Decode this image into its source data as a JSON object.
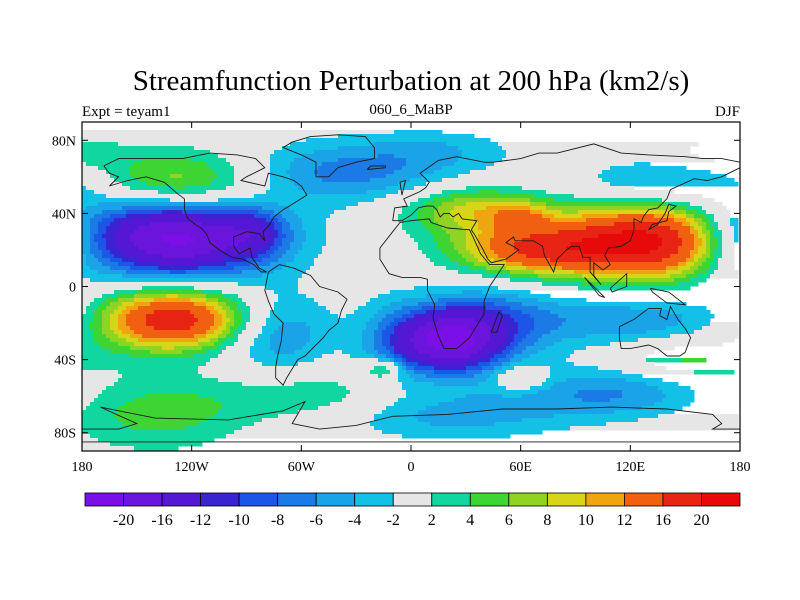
{
  "chart_data": {
    "type": "heatmap",
    "title": "Streamfunction Perturbation at 200 hPa (km2/s)",
    "left_label": "Expt = teyam1",
    "center_label": "060_6_MaBP",
    "right_label": "DJF",
    "x_ticks": [
      "180",
      "120W",
      "60W",
      "0",
      "60E",
      "120E",
      "180"
    ],
    "y_ticks": [
      "80N",
      "40N",
      "0",
      "40S",
      "80S"
    ],
    "x_range": [
      -180,
      180
    ],
    "y_range": [
      -90,
      90
    ],
    "colorbar": {
      "labels": [
        "-20",
        "-16",
        "-12",
        "-10",
        "-8",
        "-6",
        "-4",
        "-2",
        "2",
        "4",
        "6",
        "8",
        "10",
        "12",
        "16",
        "20"
      ],
      "levels": [
        -20,
        -16,
        -12,
        -10,
        -8,
        -6,
        -4,
        -2,
        2,
        4,
        6,
        8,
        10,
        12,
        16,
        20
      ],
      "colors": [
        "#7a0fe8",
        "#6a14dc",
        "#5418d4",
        "#3a23d0",
        "#1d55e6",
        "#1c7ae6",
        "#1ba3e8",
        "#14c1e6",
        "#e6e6e6",
        "#12d6a0",
        "#3ed434",
        "#8fd423",
        "#d8d418",
        "#f0a40f",
        "#f06010",
        "#e82414",
        "#e80a0a"
      ]
    },
    "features": [
      {
        "lon": -130,
        "lat": 28,
        "sx": 38,
        "sy": 16,
        "amp": -22
      },
      {
        "lon": -85,
        "lat": 30,
        "sx": 12,
        "sy": 9,
        "amp": -5
      },
      {
        "lon": -125,
        "lat": 55,
        "sx": 35,
        "sy": 13,
        "amp": 11
      },
      {
        "lon": -40,
        "lat": 62,
        "sx": 45,
        "sy": 12,
        "amp": -7
      },
      {
        "lon": 15,
        "lat": 75,
        "sx": 30,
        "sy": 8,
        "amp": -3
      },
      {
        "lon": 35,
        "lat": 42,
        "sx": 28,
        "sy": 9,
        "amp": 9
      },
      {
        "lon": 60,
        "lat": 38,
        "sx": 10,
        "sy": 5,
        "amp": 5
      },
      {
        "lon": 130,
        "lat": 25,
        "sx": 35,
        "sy": 15,
        "amp": 21
      },
      {
        "lon": 65,
        "lat": 20,
        "sx": 30,
        "sy": 10,
        "amp": 14
      },
      {
        "lon": 140,
        "lat": 55,
        "sx": 35,
        "sy": 10,
        "amp": -6
      },
      {
        "lon": 170,
        "lat": 73,
        "sx": 20,
        "sy": 6,
        "amp": 4
      },
      {
        "lon": -130,
        "lat": -18,
        "sx": 30,
        "sy": 12,
        "amp": 19
      },
      {
        "lon": -140,
        "lat": -70,
        "sx": 35,
        "sy": 14,
        "amp": 5
      },
      {
        "lon": -75,
        "lat": -25,
        "sx": 22,
        "sy": 15,
        "amp": -7
      },
      {
        "lon": -50,
        "lat": -60,
        "sx": 40,
        "sy": 10,
        "amp": 4
      },
      {
        "lon": -10,
        "lat": -30,
        "sx": 15,
        "sy": 18,
        "amp": -4
      },
      {
        "lon": -15,
        "lat": -45,
        "sx": 7,
        "sy": 4,
        "amp": 7
      },
      {
        "lon": 20,
        "lat": -30,
        "sx": 20,
        "sy": 12,
        "amp": -19
      },
      {
        "lon": 45,
        "lat": -20,
        "sx": 25,
        "sy": 15,
        "amp": -7
      },
      {
        "lon": 60,
        "lat": -50,
        "sx": 10,
        "sy": 5,
        "amp": 5
      },
      {
        "lon": 120,
        "lat": -18,
        "sx": 40,
        "sy": 10,
        "amp": -6
      },
      {
        "lon": 150,
        "lat": -40,
        "sx": 25,
        "sy": 8,
        "amp": 5
      },
      {
        "lon": 110,
        "lat": -58,
        "sx": 38,
        "sy": 10,
        "amp": -6
      },
      {
        "lon": 20,
        "lat": -70,
        "sx": 45,
        "sy": 10,
        "amp": -5
      },
      {
        "lon": 175,
        "lat": 20,
        "sx": 15,
        "sy": 25,
        "amp": -3
      }
    ],
    "coastlines": [
      [
        [
          -168,
          66
        ],
        [
          -160,
          70
        ],
        [
          -140,
          70
        ],
        [
          -125,
          70
        ],
        [
          -110,
          73
        ],
        [
          -95,
          72
        ],
        [
          -85,
          70
        ],
        [
          -80,
          65
        ],
        [
          -90,
          60
        ],
        [
          -93,
          58
        ],
        [
          -80,
          55
        ],
        [
          -78,
          62
        ],
        [
          -70,
          60
        ],
        [
          -64,
          58
        ],
        [
          -60,
          55
        ],
        [
          -57,
          50
        ],
        [
          -65,
          45
        ],
        [
          -70,
          42
        ],
        [
          -75,
          38
        ],
        [
          -78,
          33
        ],
        [
          -81,
          30
        ],
        [
          -80,
          25
        ],
        [
          -83,
          29
        ],
        [
          -90,
          30
        ],
        [
          -97,
          27
        ],
        [
          -97,
          22
        ],
        [
          -94,
          18
        ],
        [
          -88,
          21
        ],
        [
          -87,
          16
        ],
        [
          -83,
          10
        ],
        [
          -79,
          8
        ],
        [
          -82,
          8
        ],
        [
          -86,
          12
        ],
        [
          -92,
          15
        ],
        [
          -98,
          16
        ],
        [
          -105,
          20
        ],
        [
          -110,
          24
        ],
        [
          -112,
          29
        ],
        [
          -115,
          32
        ],
        [
          -118,
          34
        ],
        [
          -122,
          37
        ],
        [
          -124,
          42
        ],
        [
          -124,
          48
        ],
        [
          -128,
          51
        ],
        [
          -135,
          57
        ],
        [
          -145,
          60
        ],
        [
          -155,
          58
        ],
        [
          -165,
          55
        ],
        [
          -160,
          60
        ],
        [
          -165,
          62
        ],
        [
          -168,
          66
        ]
      ],
      [
        [
          -78,
          8
        ],
        [
          -72,
          12
        ],
        [
          -64,
          10
        ],
        [
          -55,
          6
        ],
        [
          -50,
          0
        ],
        [
          -40,
          -3
        ],
        [
          -35,
          -7
        ],
        [
          -38,
          -13
        ],
        [
          -40,
          -20
        ],
        [
          -45,
          -24
        ],
        [
          -48,
          -28
        ],
        [
          -53,
          -33
        ],
        [
          -58,
          -38
        ],
        [
          -62,
          -40
        ],
        [
          -65,
          -45
        ],
        [
          -68,
          -50
        ],
        [
          -70,
          -54
        ],
        [
          -74,
          -50
        ],
        [
          -74,
          -44
        ],
        [
          -73,
          -38
        ],
        [
          -71,
          -30
        ],
        [
          -70,
          -20
        ],
        [
          -75,
          -15
        ],
        [
          -78,
          -8
        ],
        [
          -80,
          -2
        ],
        [
          -78,
          8
        ]
      ],
      [
        [
          -52,
          60
        ],
        [
          -45,
          60
        ],
        [
          -40,
          65
        ],
        [
          -30,
          68
        ],
        [
          -20,
          70
        ],
        [
          -20,
          76
        ],
        [
          -25,
          82
        ],
        [
          -40,
          83
        ],
        [
          -55,
          82
        ],
        [
          -65,
          79
        ],
        [
          -70,
          76
        ],
        [
          -60,
          72
        ],
        [
          -52,
          68
        ],
        [
          -52,
          60
        ]
      ],
      [
        [
          -10,
          36
        ],
        [
          -9,
          43
        ],
        [
          -2,
          44
        ],
        [
          -4,
          48
        ],
        [
          5,
          52
        ],
        [
          8,
          54
        ],
        [
          10,
          57
        ],
        [
          5,
          62
        ],
        [
          15,
          69
        ],
        [
          25,
          71
        ],
        [
          40,
          68
        ],
        [
          45,
          68
        ],
        [
          60,
          70
        ],
        [
          70,
          73
        ],
        [
          80,
          73
        ],
        [
          100,
          78
        ],
        [
          115,
          73
        ],
        [
          130,
          72
        ],
        [
          150,
          71
        ],
        [
          160,
          70
        ],
        [
          170,
          70
        ],
        [
          180,
          68
        ],
        [
          180,
          65
        ],
        [
          170,
          60
        ],
        [
          162,
          58
        ],
        [
          155,
          59
        ],
        [
          142,
          53
        ],
        [
          140,
          48
        ],
        [
          135,
          43
        ],
        [
          130,
          42
        ],
        [
          127,
          38
        ],
        [
          126,
          35
        ],
        [
          122,
          37
        ],
        [
          122,
          31
        ],
        [
          120,
          25
        ],
        [
          115,
          22
        ],
        [
          108,
          21
        ],
        [
          106,
          17
        ],
        [
          109,
          12
        ],
        [
          105,
          9
        ],
        [
          100,
          13
        ],
        [
          100,
          6
        ],
        [
          104,
          1
        ],
        [
          98,
          8
        ],
        [
          98,
          16
        ],
        [
          94,
          16
        ],
        [
          92,
          22
        ],
        [
          88,
          22
        ],
        [
          85,
          20
        ],
        [
          80,
          15
        ],
        [
          78,
          8
        ],
        [
          73,
          17
        ],
        [
          72,
          22
        ],
        [
          67,
          25
        ],
        [
          60,
          25
        ],
        [
          57,
          25
        ],
        [
          56,
          27
        ],
        [
          52,
          24
        ],
        [
          56,
          22
        ],
        [
          59,
          20
        ],
        [
          52,
          15
        ],
        [
          44,
          13
        ],
        [
          42,
          15
        ],
        [
          39,
          21
        ],
        [
          35,
          28
        ],
        [
          33,
          31
        ],
        [
          36,
          36
        ],
        [
          28,
          37
        ],
        [
          26,
          40
        ],
        [
          23,
          38
        ],
        [
          21,
          40
        ],
        [
          18,
          40
        ],
        [
          16,
          38
        ],
        [
          14,
          42
        ],
        [
          12,
          44
        ],
        [
          8,
          44
        ],
        [
          4,
          43
        ],
        [
          0,
          39
        ],
        [
          -5,
          36
        ],
        [
          -10,
          36
        ]
      ],
      [
        [
          -17,
          21
        ],
        [
          -17,
          15
        ],
        [
          -12,
          7
        ],
        [
          -5,
          5
        ],
        [
          5,
          5
        ],
        [
          9,
          4
        ],
        [
          9,
          -2
        ],
        [
          13,
          -10
        ],
        [
          12,
          -17
        ],
        [
          15,
          -27
        ],
        [
          18,
          -34
        ],
        [
          25,
          -34
        ],
        [
          32,
          -28
        ],
        [
          35,
          -23
        ],
        [
          40,
          -15
        ],
        [
          40,
          -8
        ],
        [
          43,
          0
        ],
        [
          51,
          12
        ],
        [
          43,
          12
        ],
        [
          38,
          18
        ],
        [
          34,
          27
        ],
        [
          32,
          31
        ],
        [
          20,
          32
        ],
        [
          11,
          35
        ],
        [
          10,
          37
        ],
        [
          0,
          36
        ],
        [
          -6,
          35
        ],
        [
          -10,
          30
        ],
        [
          -17,
          21
        ]
      ],
      [
        [
          114,
          -22
        ],
        [
          122,
          -18
        ],
        [
          130,
          -12
        ],
        [
          137,
          -12
        ],
        [
          136,
          -16
        ],
        [
          140,
          -18
        ],
        [
          142,
          -11
        ],
        [
          146,
          -18
        ],
        [
          150,
          -23
        ],
        [
          153,
          -28
        ],
        [
          150,
          -36
        ],
        [
          147,
          -38
        ],
        [
          140,
          -38
        ],
        [
          135,
          -34
        ],
        [
          130,
          -32
        ],
        [
          120,
          -34
        ],
        [
          115,
          -34
        ],
        [
          114,
          -28
        ],
        [
          114,
          -22
        ]
      ],
      [
        [
          44,
          -25
        ],
        [
          48,
          -14
        ],
        [
          50,
          -16
        ],
        [
          47,
          -25
        ],
        [
          44,
          -25
        ]
      ],
      [
        [
          130,
          31
        ],
        [
          132,
          34
        ],
        [
          136,
          35
        ],
        [
          140,
          36
        ],
        [
          141,
          41
        ],
        [
          145,
          44
        ],
        [
          141,
          45
        ],
        [
          139,
          40
        ],
        [
          135,
          34
        ],
        [
          130,
          31
        ]
      ],
      [
        [
          -5,
          50
        ],
        [
          -3,
          58
        ],
        [
          -6,
          57
        ],
        [
          -5,
          50
        ]
      ],
      [
        [
          95,
          5
        ],
        [
          106,
          -6
        ],
        [
          103,
          -5
        ],
        [
          95,
          5
        ]
      ],
      [
        [
          109,
          -1
        ],
        [
          118,
          7
        ],
        [
          118,
          0
        ],
        [
          110,
          -3
        ],
        [
          109,
          -1
        ]
      ],
      [
        [
          131,
          -1
        ],
        [
          141,
          -3
        ],
        [
          150,
          -10
        ],
        [
          140,
          -9
        ],
        [
          132,
          -3
        ],
        [
          131,
          -1
        ]
      ],
      [
        [
          -24,
          64
        ],
        [
          -14,
          65
        ],
        [
          -14,
          66
        ],
        [
          -22,
          66
        ],
        [
          -24,
          64
        ]
      ],
      [
        [
          -170,
          -66
        ],
        [
          -140,
          -72
        ],
        [
          -100,
          -73
        ],
        [
          -70,
          -68
        ],
        [
          -58,
          -63
        ],
        [
          -65,
          -75
        ],
        [
          -50,
          -78
        ],
        [
          -30,
          -76
        ],
        [
          -10,
          -71
        ],
        [
          20,
          -70
        ],
        [
          50,
          -67
        ],
        [
          80,
          -67
        ],
        [
          110,
          -66
        ],
        [
          140,
          -67
        ],
        [
          165,
          -70
        ],
        [
          170,
          -75
        ],
        [
          165,
          -78
        ],
        [
          180,
          -78
        ],
        [
          180,
          -85
        ],
        [
          -180,
          -85
        ],
        [
          -180,
          -78
        ],
        [
          -160,
          -78
        ],
        [
          -150,
          -75
        ],
        [
          -170,
          -66
        ]
      ]
    ]
  }
}
